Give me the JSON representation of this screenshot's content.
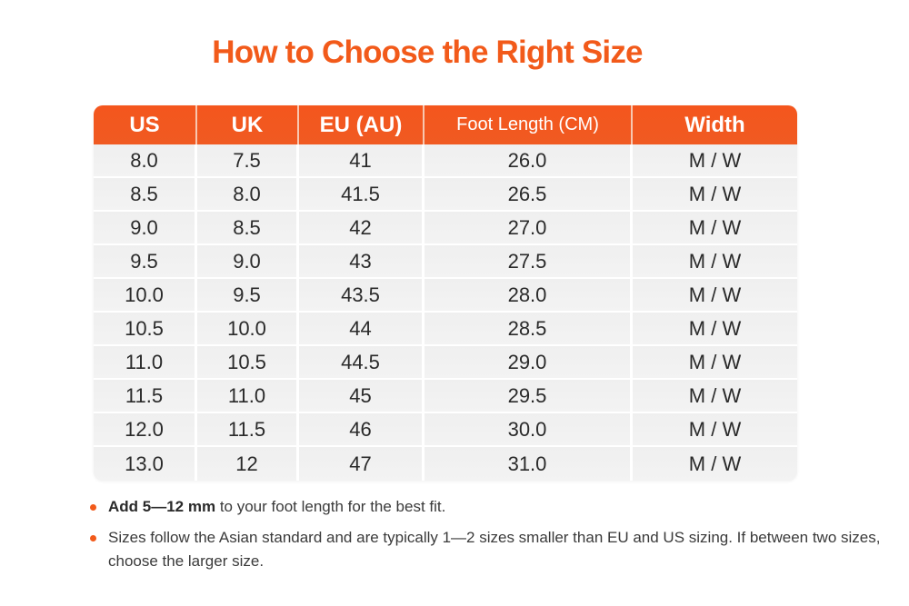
{
  "title": "How to Choose the Right Size",
  "colors": {
    "accent": "#f25a1a",
    "row_bg": "#f0f0f0"
  },
  "table": {
    "headers": [
      "US",
      "UK",
      "EU (AU)",
      "Foot Length (CM)",
      "Width"
    ],
    "rows": [
      [
        "8.0",
        "7.5",
        "41",
        "26.0",
        "M / W"
      ],
      [
        "8.5",
        "8.0",
        "41.5",
        "26.5",
        "M / W"
      ],
      [
        "9.0",
        "8.5",
        "42",
        "27.0",
        "M / W"
      ],
      [
        "9.5",
        "9.0",
        "43",
        "27.5",
        "M / W"
      ],
      [
        "10.0",
        "9.5",
        "43.5",
        "28.0",
        "M / W"
      ],
      [
        "10.5",
        "10.0",
        "44",
        "28.5",
        "M / W"
      ],
      [
        "11.0",
        "10.5",
        "44.5",
        "29.0",
        "M / W"
      ],
      [
        "11.5",
        "11.0",
        "45",
        "29.5",
        "M / W"
      ],
      [
        "12.0",
        "11.5",
        "46",
        "30.0",
        "M / W"
      ],
      [
        "13.0",
        "12",
        "47",
        "31.0",
        "M / W"
      ]
    ]
  },
  "notes": [
    {
      "bold": "Add 5—12 mm",
      "text": " to your foot length for the best fit."
    },
    {
      "bold": "",
      "text": "Sizes follow the Asian standard and are typically 1—2 sizes smaller than EU and US sizing. If between two sizes, choose the larger size."
    }
  ]
}
